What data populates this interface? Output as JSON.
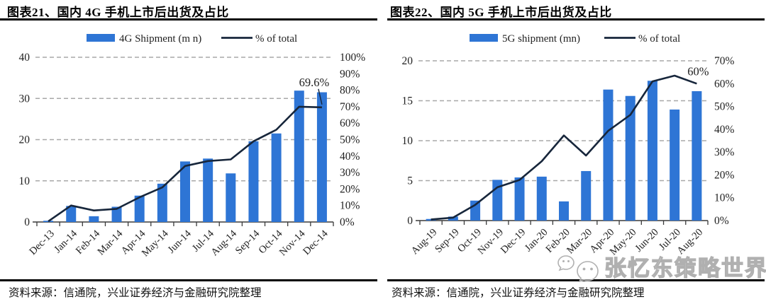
{
  "page": {
    "background": "#ffffff"
  },
  "watermark": {
    "text": "张忆东策略世界",
    "icon": "wechat-logo-icon"
  },
  "colors": {
    "bar": "#2E75D5",
    "line": "#17263B",
    "grid": "#a8a8a8",
    "axis": "#3a3a3a"
  },
  "panels": [
    {
      "title": "图表21、国内 4G 手机上市后出货及占比",
      "source": "资料来源：信通院，兴业证券经济与金融研究院整理",
      "chart_data": {
        "type": "bar+line combo",
        "categories": [
          "Dec-13",
          "Jan-14",
          "Feb-14",
          "Mar-14",
          "Apr-14",
          "May-14",
          "Jun-14",
          "Jul-14",
          "Aug-14",
          "Sep-14",
          "Oct-14",
          "Nov-14",
          "Dec-14"
        ],
        "series": [
          {
            "name": "4G Shipment (m n)",
            "type": "bar",
            "axis": "left",
            "color": "#2E75D5",
            "values": [
              0.3,
              3.9,
              1.4,
              3.7,
              6.4,
              9.3,
              14.7,
              15.4,
              11.8,
              19.6,
              21.5,
              31.9,
              31.5
            ]
          },
          {
            "name": "% of total",
            "type": "line",
            "axis": "right",
            "color": "#17263B",
            "values": [
              0.4,
              10,
              7,
              8,
              15,
              21,
              34,
              37,
              38,
              49,
              56,
              70,
              69.6
            ]
          }
        ],
        "left_axis": {
          "min": 0,
          "max": 40,
          "tick_labels": [
            "0",
            "10",
            "20",
            "30",
            "40"
          ]
        },
        "right_axis": {
          "min": 0,
          "max": 100,
          "tick_labels": [
            "0%",
            "10%",
            "20%",
            "30%",
            "40%",
            "50%",
            "60%",
            "70%",
            "80%",
            "90%",
            "100%"
          ]
        },
        "annotation": {
          "text": "69.6%",
          "index": 12,
          "leader": true
        },
        "grid": "dashed horizontal",
        "legend_position": "top-center"
      }
    },
    {
      "title": "图表22、国内 5G 手机上市后出货及占比",
      "source": "资料来源：信通院，兴业证券经济与金融研究院整理",
      "chart_data": {
        "type": "bar+line combo",
        "categories": [
          "Aug-19",
          "Sep-19",
          "Oct-19",
          "Nov-19",
          "Dec-19",
          "Jan-20",
          "Feb-20",
          "Mar-20",
          "Apr-20",
          "May-20",
          "Jun-20",
          "Jul-20",
          "Aug-20"
        ],
        "series": [
          {
            "name": "5G shipment (mn)",
            "type": "bar",
            "axis": "left",
            "color": "#2E75D5",
            "values": [
              0.2,
              0.5,
              2.5,
              5.1,
              5.4,
              5.5,
              2.4,
              6.2,
              16.4,
              15.6,
              17.5,
              13.9,
              16.2
            ]
          },
          {
            "name": "% of total",
            "type": "line",
            "axis": "right",
            "color": "#17263B",
            "values": [
              0.5,
              1.3,
              6.9,
              14.6,
              17.8,
              26,
              37.3,
              28.5,
              39.3,
              46.3,
              61,
              63.5,
              60
            ]
          }
        ],
        "left_axis": {
          "min": 0,
          "max": 20,
          "tick_labels": [
            "0",
            "5",
            "10",
            "15",
            "20"
          ]
        },
        "right_axis": {
          "min": 0,
          "max": 70,
          "tick_labels": [
            "0%",
            "10%",
            "20%",
            "30%",
            "40%",
            "50%",
            "60%",
            "70%"
          ]
        },
        "annotation": {
          "text": "60%",
          "index": 12,
          "leader": false
        },
        "grid": "dashed horizontal",
        "legend_position": "top-center"
      }
    }
  ]
}
